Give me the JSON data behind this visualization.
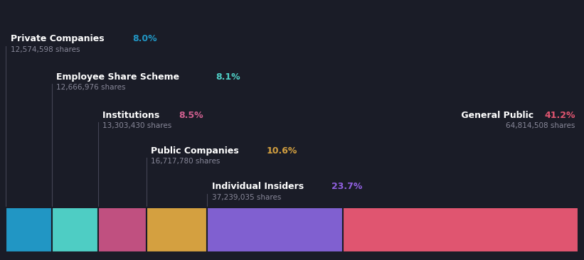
{
  "background_color": "#1a1c27",
  "categories": [
    "Private Companies",
    "Employee Share Scheme",
    "Institutions",
    "Public Companies",
    "Individual Insiders",
    "General Public"
  ],
  "percentages": [
    8.0,
    8.1,
    8.5,
    10.6,
    23.7,
    41.2
  ],
  "shares": [
    "12,574,598 shares",
    "12,666,976 shares",
    "13,303,430 shares",
    "16,717,780 shares",
    "37,239,035 shares",
    "64,814,508 shares"
  ],
  "bar_colors": [
    "#2196c4",
    "#4ecdc4",
    "#c05080",
    "#d4a040",
    "#8060d0",
    "#e05570"
  ],
  "pct_colors": [
    "#2196c4",
    "#4ecdc4",
    "#d06090",
    "#d4a040",
    "#9060e0",
    "#e05570"
  ],
  "text_color": "#ffffff",
  "shares_color": "#888899",
  "line_color": "#444455",
  "font_size_main": 9.0,
  "font_size_shares": 7.5
}
